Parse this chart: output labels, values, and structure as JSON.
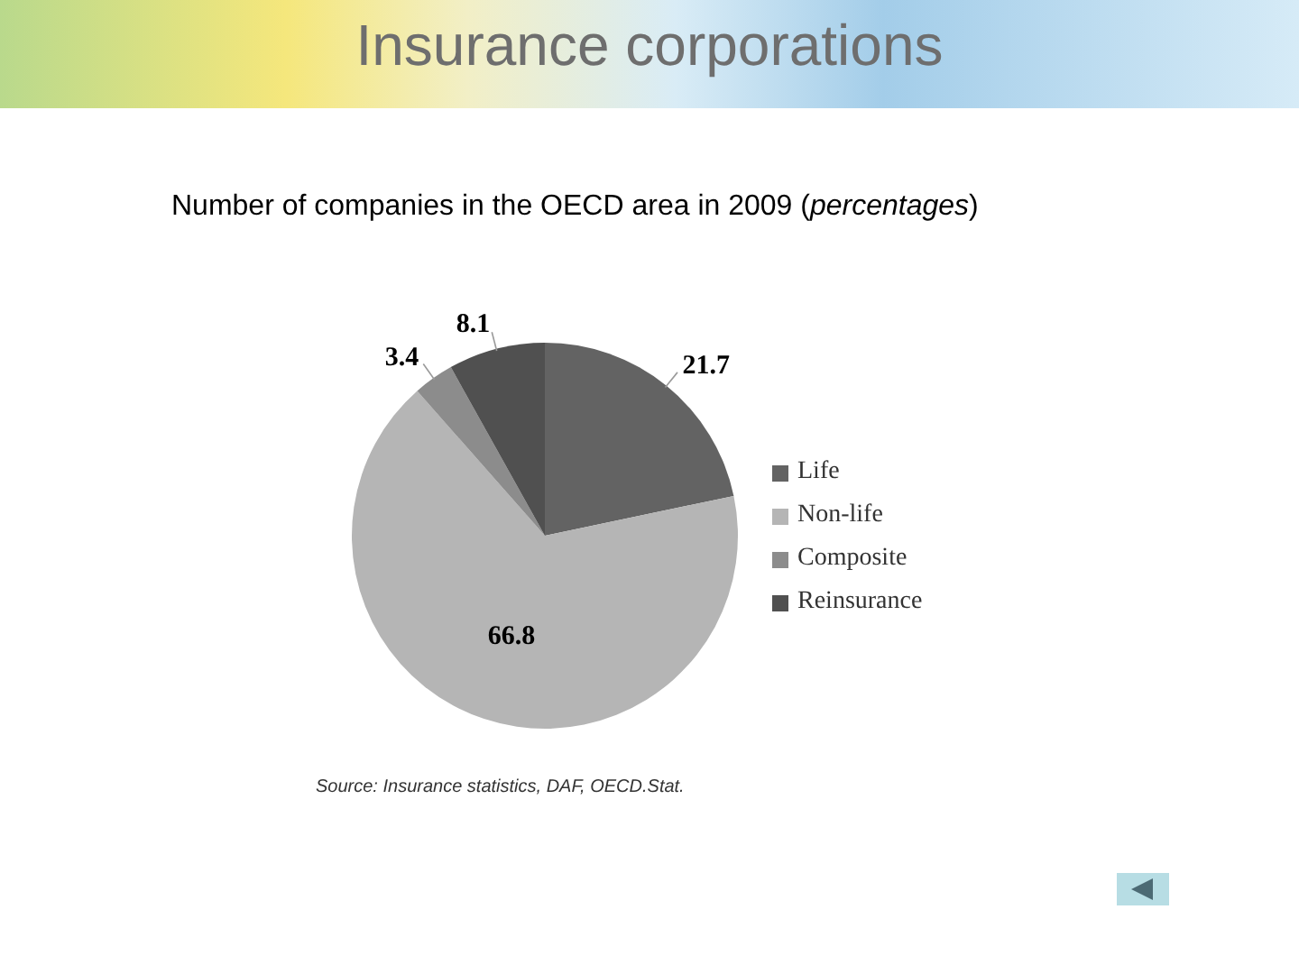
{
  "chart_data": {
    "type": "pie",
    "title": "Insurance corporations",
    "subtitle": "Number of companies in the OECD area in 2009 (percentages)",
    "categories": [
      "Life",
      "Non-life",
      "Composite",
      "Reinsurance"
    ],
    "values": [
      21.7,
      66.8,
      3.4,
      8.1
    ],
    "colors": [
      "#636363",
      "#b5b5b5",
      "#8c8c8c",
      "#505050"
    ],
    "data_labels": true,
    "legend": "right",
    "annotations": [
      "Source: Insurance statistics, DAF, OECD.Stat."
    ]
  }
}
